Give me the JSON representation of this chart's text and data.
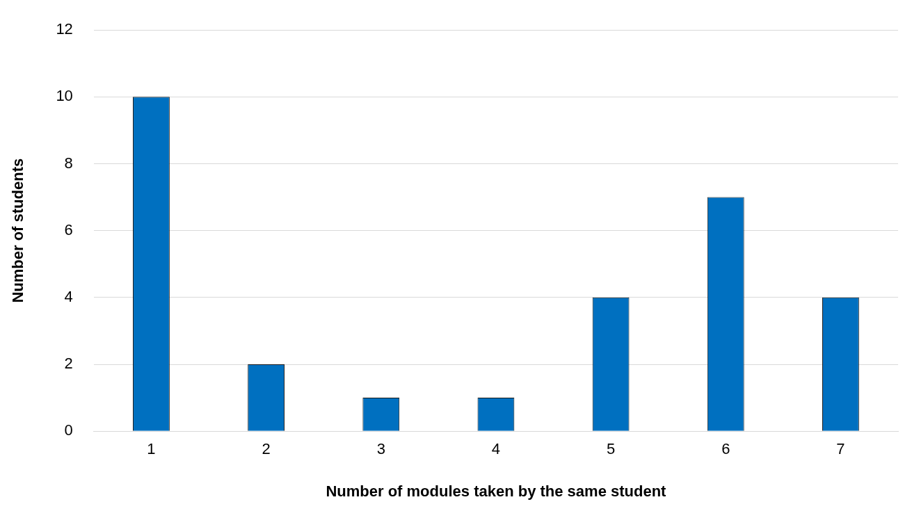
{
  "chart_data": {
    "type": "bar",
    "xlabel": "Number of modules taken by the same student",
    "ylabel": "Number of students",
    "categories": [
      "1",
      "2",
      "3",
      "4",
      "5",
      "6",
      "7"
    ],
    "values": [
      10,
      2,
      1,
      1,
      4,
      7,
      4
    ],
    "color": "#0070c0",
    "ylim": [
      0,
      12
    ],
    "yticks": [
      0,
      2,
      4,
      6,
      8,
      10,
      12
    ],
    "grid": "y",
    "legend": false
  }
}
